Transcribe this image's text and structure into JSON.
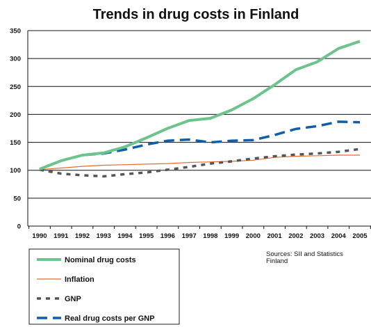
{
  "chart_data": {
    "type": "line",
    "title": "Trends in drug costs in Finland",
    "xlabel": "",
    "ylabel": "",
    "ylim": [
      0,
      350
    ],
    "yticks": [
      0,
      50,
      100,
      150,
      200,
      250,
      300,
      350
    ],
    "grid": "horizontal",
    "x": [
      1990,
      1991,
      1992,
      1993,
      1994,
      1995,
      1996,
      1997,
      1998,
      1999,
      2000,
      2001,
      2002,
      2003,
      2004,
      2005
    ],
    "series": [
      {
        "name": "Nominal drug costs",
        "color": "#6cc48c",
        "style": "solid-thick",
        "values": [
          102,
          117,
          127,
          131,
          142,
          158,
          175,
          189,
          193,
          208,
          228,
          253,
          280,
          294,
          318,
          331
        ]
      },
      {
        "name": "Inflation",
        "color": "#ea6a2c",
        "style": "solid-thin",
        "values": [
          101,
          104,
          107,
          109,
          110,
          111,
          112,
          114,
          115,
          116,
          118,
          123,
          125,
          126,
          127,
          127
        ]
      },
      {
        "name": "GNP",
        "color": "#555555",
        "style": "dashed",
        "values": [
          101,
          94,
          91,
          89,
          93,
          96,
          101,
          106,
          112,
          116,
          121,
          125,
          128,
          130,
          133,
          138
        ]
      },
      {
        "name": "Real drug costs per GNP",
        "color": "#0f5ea9",
        "style": "long-dash",
        "values": [
          102,
          117,
          127,
          130,
          137,
          146,
          153,
          155,
          150,
          153,
          154,
          163,
          174,
          179,
          187,
          186
        ]
      }
    ],
    "legend_position": "bottom-left",
    "source_note": [
      "Sources: SII and Statistics",
      "Finland"
    ]
  }
}
